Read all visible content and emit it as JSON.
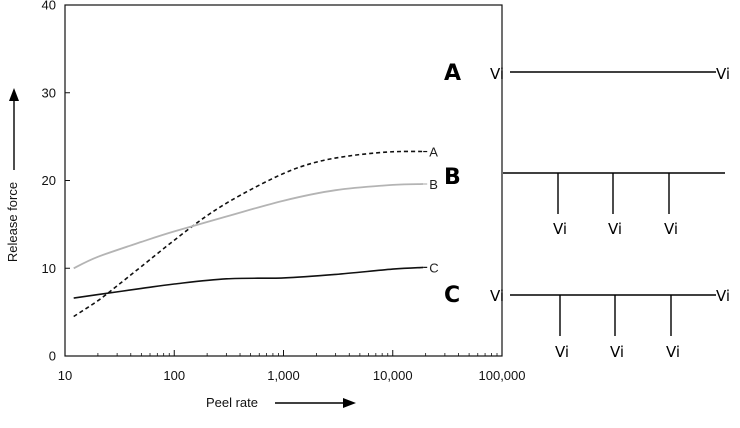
{
  "chart_data": {
    "type": "line",
    "title": "",
    "xlabel": "Peel rate",
    "ylabel": "Release force",
    "xscale": "log",
    "xlim": [
      10,
      100000
    ],
    "ylim": [
      0,
      40
    ],
    "x_ticks": [
      10,
      100,
      1000,
      10000,
      100000
    ],
    "x_tick_labels": [
      "10",
      "100",
      "1,000",
      "10,000",
      "100,000"
    ],
    "y_ticks": [
      0,
      10,
      20,
      30,
      40
    ],
    "y_tick_labels": [
      "0",
      "10",
      "20",
      "30",
      "40"
    ],
    "grid": false,
    "series": [
      {
        "name": "A",
        "style": "dashed",
        "color": "#111111",
        "x": [
          12,
          20,
          30,
          50,
          100,
          200,
          400,
          1000,
          2000,
          4000,
          8000,
          12000,
          19000
        ],
        "y": [
          4.5,
          6.3,
          8.0,
          10.2,
          13.2,
          16.0,
          18.3,
          20.8,
          22.1,
          22.8,
          23.2,
          23.3,
          23.3
        ]
      },
      {
        "name": "B",
        "style": "solid",
        "color": "#b4b4b4",
        "x": [
          12,
          20,
          50,
          100,
          300,
          1000,
          3000,
          10000,
          19000
        ],
        "y": [
          10.0,
          11.3,
          13.0,
          14.2,
          15.9,
          17.7,
          18.9,
          19.5,
          19.6
        ]
      },
      {
        "name": "C",
        "style": "solid",
        "color": "#111111",
        "x": [
          12,
          20,
          50,
          100,
          300,
          1000,
          3000,
          10000,
          19000
        ],
        "y": [
          6.6,
          7.0,
          7.7,
          8.2,
          8.8,
          8.9,
          9.3,
          9.9,
          10.1
        ]
      }
    ]
  },
  "diagrams": [
    {
      "label": "A",
      "ends": [
        "Vi",
        "Vi"
      ],
      "branches": []
    },
    {
      "label": "B",
      "ends": [],
      "branches": [
        "Vi",
        "Vi",
        "Vi"
      ]
    },
    {
      "label": "C",
      "ends": [
        "Vi",
        "Vi"
      ],
      "branches": [
        "Vi",
        "Vi",
        "Vi"
      ]
    }
  ]
}
